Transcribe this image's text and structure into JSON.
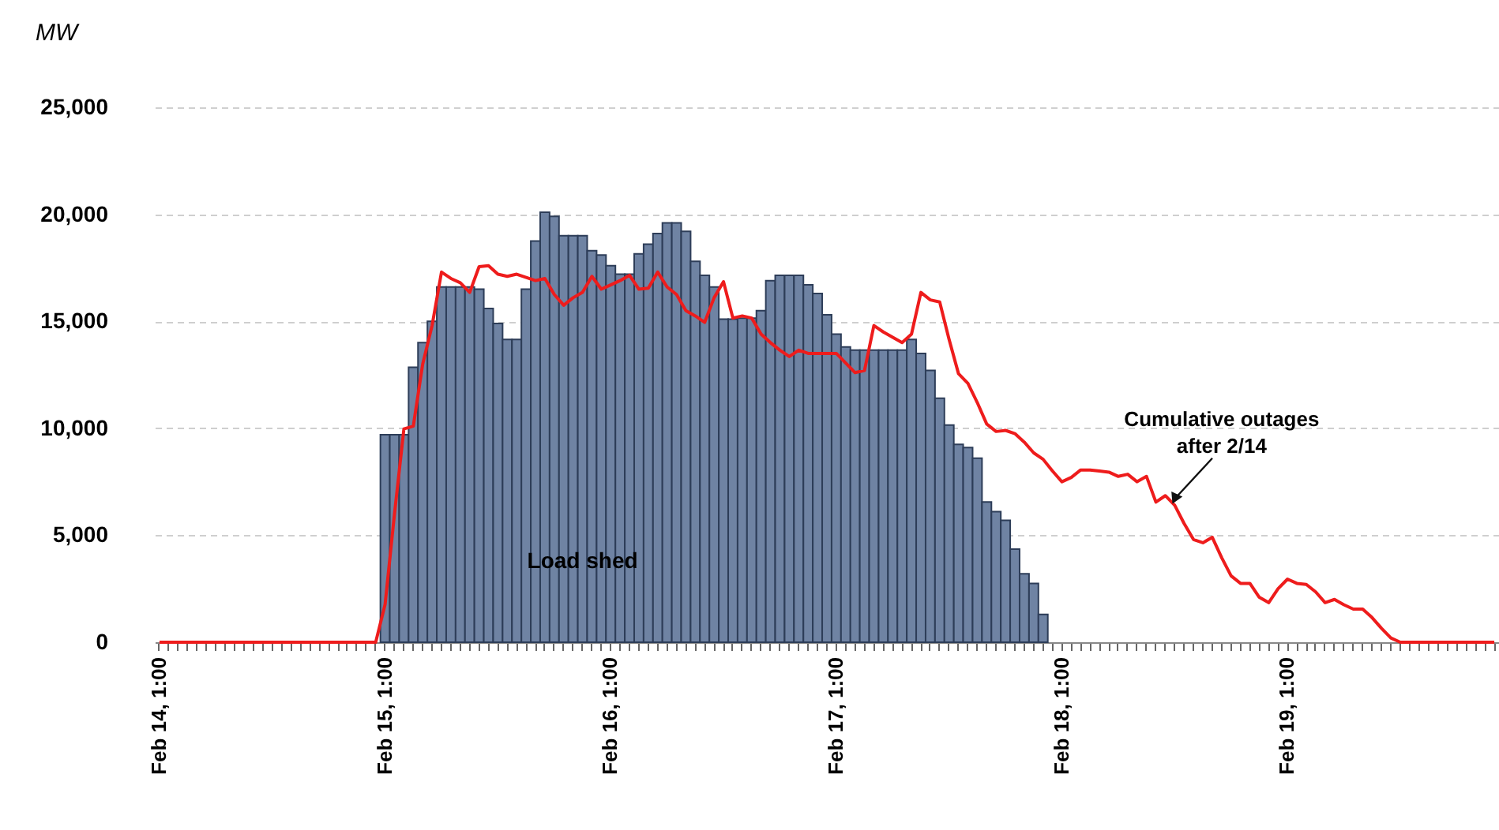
{
  "chart_data": {
    "type": "bar",
    "ylabel": "MW",
    "categories": [
      "Feb 14, 1:00",
      null,
      null,
      null,
      null,
      null,
      null,
      null,
      null,
      null,
      null,
      null,
      null,
      null,
      null,
      null,
      null,
      null,
      null,
      null,
      null,
      null,
      null,
      null,
      "Feb 15, 1:00",
      null,
      null,
      null,
      null,
      null,
      null,
      null,
      null,
      null,
      null,
      null,
      null,
      null,
      null,
      null,
      null,
      null,
      null,
      null,
      null,
      null,
      null,
      null,
      "Feb 16, 1:00",
      null,
      null,
      null,
      null,
      null,
      null,
      null,
      null,
      null,
      null,
      null,
      null,
      null,
      null,
      null,
      null,
      null,
      null,
      null,
      null,
      null,
      null,
      null,
      "Feb 17, 1:00",
      null,
      null,
      null,
      null,
      null,
      null,
      null,
      null,
      null,
      null,
      null,
      null,
      null,
      null,
      null,
      null,
      null,
      null,
      null,
      null,
      null,
      null,
      null,
      "Feb 18, 1:00",
      null,
      null,
      null,
      null,
      null,
      null,
      null,
      null,
      null,
      null,
      null,
      null,
      null,
      null,
      null,
      null,
      null,
      null,
      null,
      null,
      null,
      null,
      null,
      "Feb 19, 1:00",
      null,
      null,
      null,
      null,
      null,
      null,
      null,
      null,
      null,
      null,
      null,
      null,
      null,
      null,
      null,
      null,
      null,
      null,
      null,
      null,
      null,
      null
    ],
    "series": [
      {
        "name": "Load shed",
        "color": "#6f83a3",
        "values": [
          null,
          null,
          null,
          null,
          null,
          null,
          null,
          null,
          null,
          null,
          null,
          null,
          null,
          null,
          null,
          null,
          null,
          null,
          null,
          null,
          null,
          null,
          null,
          null,
          9700,
          9700,
          9700,
          12850,
          14000,
          15000,
          16600,
          16600,
          16600,
          16600,
          16500,
          15600,
          14900,
          14150,
          14150,
          16500,
          18750,
          20100,
          19900,
          19000,
          19000,
          19000,
          18300,
          18100,
          17600,
          17200,
          17200,
          18150,
          18600,
          19100,
          19600,
          19600,
          19200,
          17800,
          17150,
          16600,
          15100,
          15100,
          15150,
          15150,
          15500,
          16900,
          17150,
          17150,
          17150,
          16700,
          16300,
          15300,
          14400,
          13800,
          13650,
          13650,
          13650,
          13650,
          13650,
          13650,
          14150,
          13500,
          12700,
          11400,
          10150,
          9250,
          9100,
          8600,
          6550,
          6100,
          5700,
          4350,
          3200,
          2750,
          1300,
          null,
          null,
          null,
          null,
          null,
          null,
          null,
          null,
          null,
          null,
          null,
          null,
          null,
          null,
          null,
          null,
          null,
          null,
          null,
          null,
          null,
          null,
          null,
          null,
          null,
          null,
          null,
          null,
          null,
          null,
          null,
          null,
          null,
          null,
          null,
          null,
          null,
          null,
          null,
          null,
          null,
          null,
          null,
          null,
          null,
          null,
          null,
          null
        ]
      },
      {
        "name": "Cumulative outages after 2/14",
        "type": "line",
        "color": "#ee1c1c",
        "values": [
          0,
          0,
          0,
          0,
          0,
          0,
          0,
          0,
          0,
          0,
          0,
          0,
          0,
          0,
          0,
          0,
          0,
          0,
          0,
          0,
          0,
          0,
          0,
          0,
          1770,
          6000,
          9970,
          10100,
          13000,
          14800,
          17300,
          17000,
          16800,
          16350,
          17550,
          17600,
          17200,
          17100,
          17200,
          17050,
          16900,
          17000,
          16250,
          15750,
          16100,
          16350,
          17100,
          16500,
          16700,
          16900,
          17150,
          16500,
          16550,
          17300,
          16600,
          16250,
          15500,
          15250,
          14950,
          16100,
          16850,
          15150,
          15250,
          15150,
          14400,
          14000,
          13650,
          13350,
          13650,
          13500,
          13500,
          13500,
          13500,
          13050,
          12600,
          12700,
          14800,
          14500,
          14250,
          14000,
          14400,
          16350,
          16000,
          15900,
          14150,
          12550,
          12100,
          11200,
          10200,
          9850,
          9900,
          9750,
          9350,
          8850,
          8550,
          8000,
          7500,
          7700,
          8050,
          8050,
          8000,
          7950,
          7750,
          7850,
          7500,
          7750,
          6550,
          6850,
          6400,
          5550,
          4800,
          4650,
          4900,
          3950,
          3100,
          2750,
          2750,
          2100,
          1850,
          2500,
          2950,
          2750,
          2700,
          2350,
          1850,
          2000,
          1750,
          1550,
          1550,
          1150,
          650,
          200,
          0,
          0,
          0,
          0,
          0,
          0,
          0,
          0,
          0,
          0,
          0
        ]
      }
    ],
    "ylim": [
      0,
      25000
    ],
    "yticks": [
      0,
      {
        "value": 5000,
        "label": "5,000"
      },
      {
        "value": 10000,
        "label": "10,000"
      },
      {
        "value": 15000,
        "label": "15,000"
      },
      {
        "value": 20000,
        "label": "20,000"
      },
      {
        "value": 25000,
        "label": "25,000"
      }
    ],
    "grid": "y",
    "legend": false
  }
}
